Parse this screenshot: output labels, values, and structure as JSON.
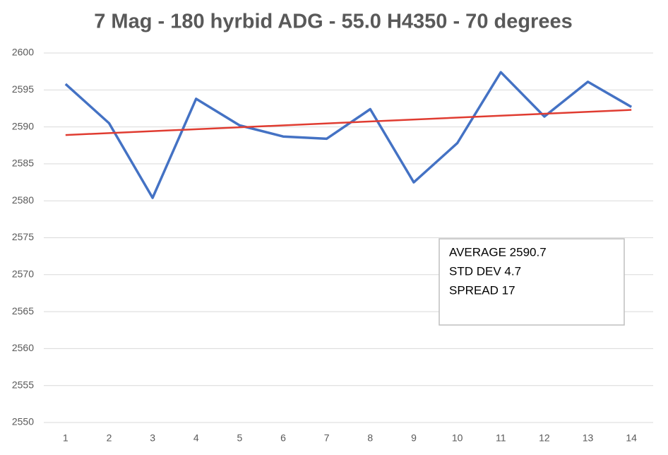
{
  "chart_data": {
    "type": "line",
    "title": "7 Mag - 180 hyrbid ADG - 55.0 H4350 - 70 degrees",
    "categories": [
      "1",
      "2",
      "3",
      "4",
      "5",
      "6",
      "7",
      "8",
      "9",
      "10",
      "11",
      "12",
      "13",
      "14"
    ],
    "series": [
      {
        "color": "#4472c4",
        "values": [
          2595.8,
          2590.5,
          2580.4,
          2593.8,
          2590.2,
          2588.7,
          2588.4,
          2592.4,
          2582.5,
          2587.8,
          2597.4,
          2591.4,
          2596.1,
          2592.7
        ]
      }
    ],
    "trendline": {
      "color": "#e03c31",
      "x": [
        1,
        14
      ],
      "values": [
        2588.9,
        2592.3
      ]
    },
    "ylim": [
      2550,
      2600
    ],
    "yticks": [
      2550,
      2555,
      2560,
      2565,
      2570,
      2575,
      2580,
      2585,
      2590,
      2595,
      2600
    ],
    "grid": true,
    "annotations": [
      "AVERAGE 2590.7",
      "STD DEV 4.7",
      "SPREAD 17"
    ]
  }
}
